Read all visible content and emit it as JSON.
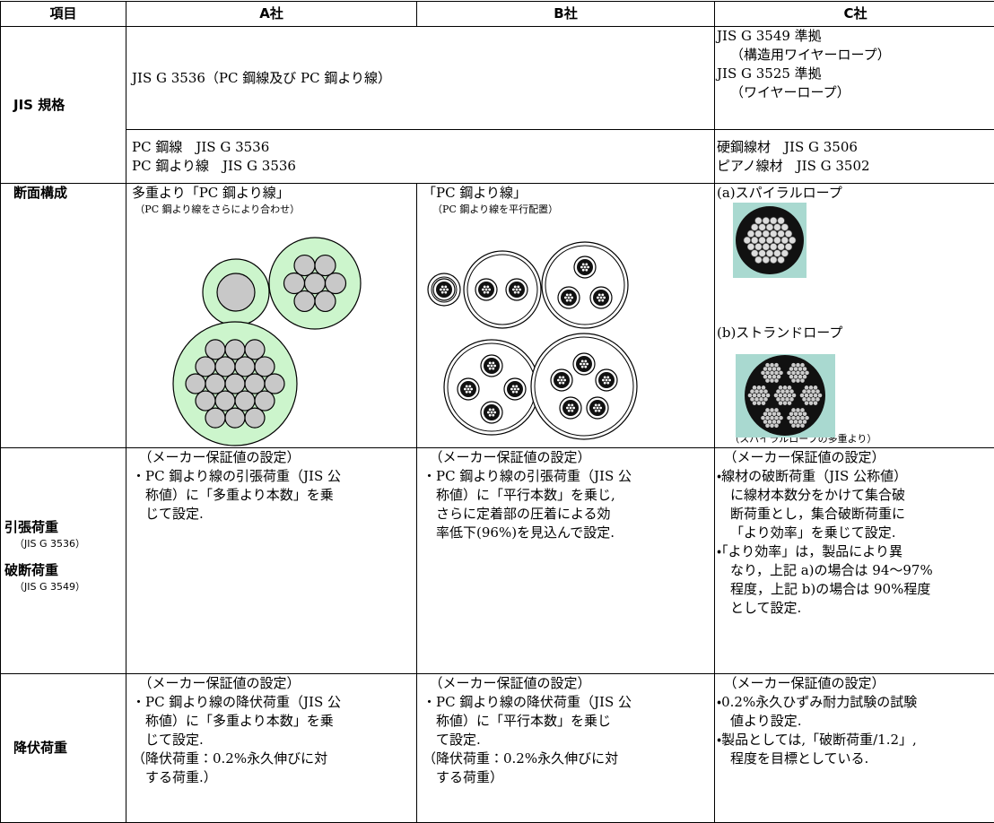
{
  "header": {
    "cells": [
      "項目",
      "A社",
      "B社",
      "C社"
    ]
  },
  "rows": {
    "jis": {
      "label": "JIS 規格",
      "ab_standard": "JIS G 3536（PC 鋼線及び PC 鋼より線）",
      "c_standard": [
        "JIS G 3549 準拠",
        "（構造用ワイヤーロープ）",
        "JIS G 3525 準拠",
        "（ワイヤーロープ）"
      ],
      "ab_material": [
        "PC 鋼線　JIS G 3536",
        "PC 鋼より線　JIS G 3536"
      ],
      "c_material": [
        "硬鋼線材　JIS G 3506",
        "ピアノ線材　JIS G 3502"
      ]
    },
    "section": {
      "label": "断面構成",
      "a_title": "多重より「PC 鋼より線」",
      "a_note": "（PC 鋼より線をさらにより合わせ）",
      "b_title": "「PC 鋼より線」",
      "b_note": "（PC 鋼より線を平行配置）",
      "c_spiral": "(a)スパイラルロープ",
      "c_strand": "(b)ストランドロープ",
      "c_note": "（スパイラルロープの多重より）"
    },
    "tensile": {
      "labels": [
        "引張荷重",
        "（JIS G 3536）",
        "破断荷重",
        "（JIS G 3549）"
      ],
      "a": [
        [
          "（メーカー保証値の設定）"
        ],
        [
          "・PC 鋼より線の引張荷重（JIS 公",
          "称値）に「多重より本数」を乗",
          "じて設定."
        ]
      ],
      "b": [
        [
          "（メーカー保証値の設定）"
        ],
        [
          "・PC 鋼より線の引張荷重（JIS 公",
          "称値）に「平行本数」を乗じ,",
          "さらに定着部の圧着による効",
          "率低下(96%)を見込んで設定."
        ]
      ],
      "c": [
        [
          "（メーカー保証値の設定）"
        ],
        [
          "・線材の破断荷重（JIS 公称値）",
          "に線材本数分をかけて集合破",
          "断荷重とし，集合破断荷重に",
          "「より効率」を乗じて設定."
        ],
        [
          "・「より効率」は，製品により異",
          "なり，上記 a)の場合は 94～97%",
          "程度，上記 b)の場合は 90%程度",
          "として設定."
        ]
      ]
    },
    "yield": {
      "label": "降伏荷重",
      "a": [
        [
          "（メーカー保証値の設定）"
        ],
        [
          "・PC 鋼より線の降伏荷重（JIS 公",
          "称値）に「多重より本数」を乗",
          "じて設定."
        ],
        [
          "（降伏荷重：0.2%永久伸びに対",
          "する荷重.）"
        ]
      ],
      "b": [
        [
          "（メーカー保証値の設定）"
        ],
        [
          "・PC 鋼より線の降伏荷重（JIS 公",
          "称値）に「平行本数」を乗じ",
          "て設定."
        ],
        [
          "（降伏荷重：0.2%永久伸びに対",
          "する荷重）"
        ]
      ],
      "c": [
        [
          "（メーカー保証値の設定）"
        ],
        [
          "・0.2%永久ひずみ耐力試験の試験",
          "値より設定."
        ],
        [
          "・製品としては,「破断荷重/1.2」,",
          "程度を目標としている."
        ]
      ]
    }
  }
}
